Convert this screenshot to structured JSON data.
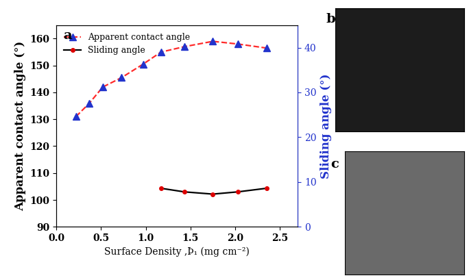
{
  "chart_data": {
    "type": "line",
    "x_label": "Surface Density ,Þ₁ (mg cm⁻²)",
    "y_label": "Apparent contact angle (°)",
    "y2_label": "Sliding angle (°)",
    "xlim": [
      0,
      2.7
    ],
    "xticks": [
      {
        "value": 0,
        "label": "0.0"
      },
      {
        "value": 0.5,
        "label": "0.5"
      },
      {
        "value": 1,
        "label": "1.0"
      },
      {
        "value": 1.5,
        "label": "1.5"
      },
      {
        "value": 2,
        "label": "2.0"
      },
      {
        "value": 2.5,
        "label": "2.5"
      }
    ],
    "ylim": [
      90,
      165
    ],
    "yticks": [
      90,
      100,
      110,
      120,
      130,
      140,
      150,
      160
    ],
    "y2lim": [
      0,
      45
    ],
    "y2ticks": [
      0,
      10,
      20,
      30,
      40
    ],
    "legend": "upper left",
    "series": [
      {
        "name": "Apparent contact angle",
        "color": "#ff2a2a",
        "marker": "^",
        "line_style": "dashed",
        "x": [
          0.22,
          0.37,
          0.52,
          0.73,
          0.97,
          1.17,
          1.43,
          1.75,
          2.03,
          2.35
        ],
        "values": [
          131,
          136,
          142,
          145.5,
          150.5,
          155,
          157,
          159,
          158,
          156.5
        ]
      },
      {
        "name": "Sliding angle",
        "color": "#000000",
        "marker": "o",
        "line_style": "solid",
        "axis": "y2",
        "x": [
          1.17,
          1.43,
          1.75,
          2.03,
          2.35
        ],
        "values": [
          8.6,
          7.8,
          7.3,
          7.8,
          8.6
        ]
      }
    ]
  },
  "panel_labels": [
    "a",
    "b",
    "c"
  ]
}
